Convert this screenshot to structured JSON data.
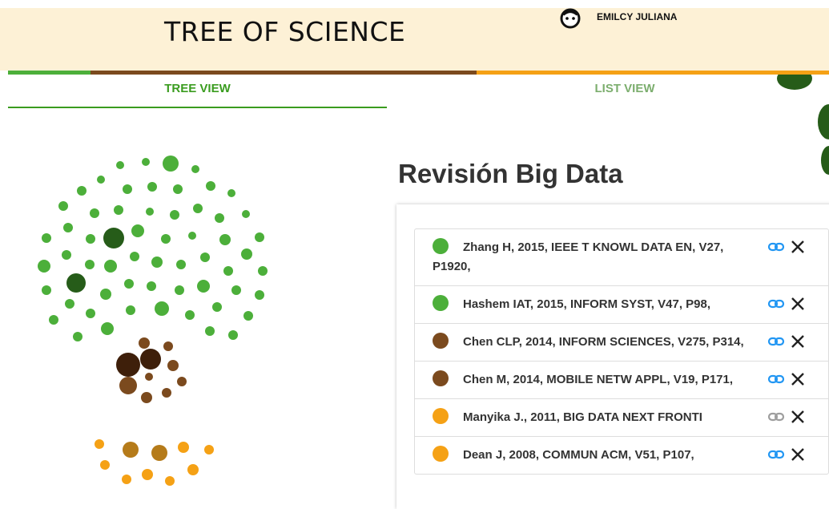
{
  "header": {
    "title": "TREE OF SCIENCE",
    "user": "EMILCY JULIANA"
  },
  "tabs": [
    "TREE VIEW",
    "LIST VIEW"
  ],
  "list": {
    "title": "Revisión Big Data",
    "items": [
      {
        "text": "Zhang H, 2015, IEEE T KNOWL DATA EN, V27, P1920,",
        "color": "#4caf3a",
        "link_color": "#2196f3"
      },
      {
        "text": "Hashem IAT, 2015, INFORM SYST, V47, P98,",
        "color": "#4caf3a",
        "link_color": "#2196f3"
      },
      {
        "text": "Chen CLP, 2014, INFORM SCIENCES, V275, P314,",
        "color": "#7b4a1e",
        "link_color": "#2196f3"
      },
      {
        "text": "Chen M, 2014, MOBILE NETW APPL, V19, P171,",
        "color": "#7b4a1e",
        "link_color": "#2196f3"
      },
      {
        "text": "Manyika J., 2011, BIG DATA NEXT FRONTI",
        "color": "#f5a115",
        "link_color": "#9e9e9e"
      },
      {
        "text": "Dean J, 2008, COMMUN ACM, V51, P107,",
        "color": "#f5a115",
        "link_color": "#2196f3"
      }
    ]
  }
}
